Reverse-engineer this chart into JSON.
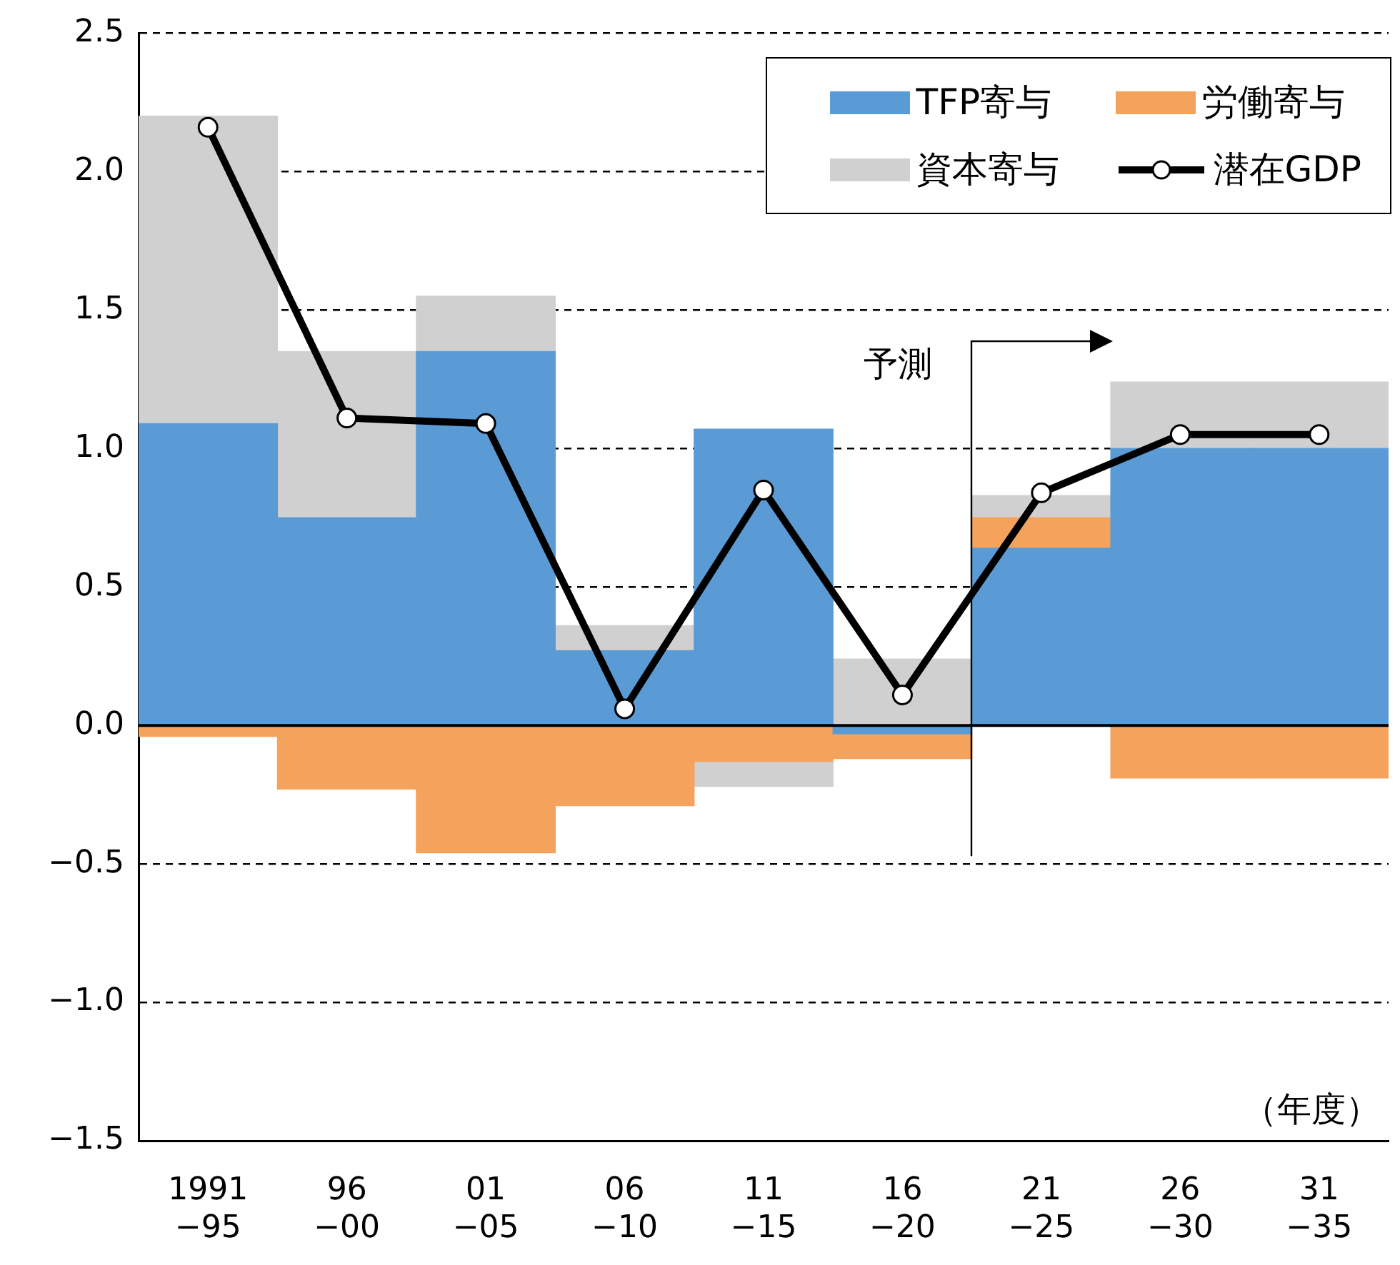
{
  "chart_data": {
    "type": "bar",
    "stacked": true,
    "xlabel": "（年度）",
    "annotations": [
      "予測"
    ],
    "categories": [
      "1991\n−95",
      "96\n−00",
      "01\n−05",
      "06\n−10",
      "11\n−15",
      "16\n−20",
      "21\n−25",
      "26\n−30",
      "31\n−35"
    ],
    "series": [
      {
        "name": "TFP寄与",
        "color": "#5b9bd5",
        "values": [
          1.09,
          0.75,
          1.35,
          0.27,
          1.07,
          -0.03,
          0.64,
          1.0,
          1.0
        ]
      },
      {
        "name": "労働寄与",
        "color": "#f5a35c",
        "values": [
          -0.04,
          -0.23,
          -0.46,
          -0.29,
          -0.13,
          -0.09,
          0.11,
          -0.19,
          -0.19
        ]
      },
      {
        "name": "資本寄与",
        "color": "#d0d0d0",
        "values": [
          1.11,
          0.6,
          0.2,
          0.09,
          -0.09,
          0.24,
          0.08,
          0.24,
          0.24
        ]
      },
      {
        "name": "潜在GDP",
        "type": "line",
        "color": "#000000",
        "marker": "circle",
        "values": [
          2.16,
          1.11,
          1.09,
          0.06,
          0.85,
          0.11,
          0.84,
          1.05,
          1.05
        ]
      }
    ],
    "ylim": [
      -1.5,
      2.5
    ],
    "yticks": [
      {
        "value": -1.5,
        "label": "−1.5"
      },
      {
        "value": -1,
        "label": "−1.0"
      },
      {
        "value": -0.5,
        "label": "−0.5"
      },
      {
        "value": 0,
        "label": "0.0"
      },
      {
        "value": 0.5,
        "label": "0.5"
      },
      {
        "value": 1,
        "label": "1.0"
      },
      {
        "value": 1.5,
        "label": "1.5"
      },
      {
        "value": 2,
        "label": "2.0"
      },
      2.5
    ],
    "grid": "y",
    "legend": "top right"
  }
}
